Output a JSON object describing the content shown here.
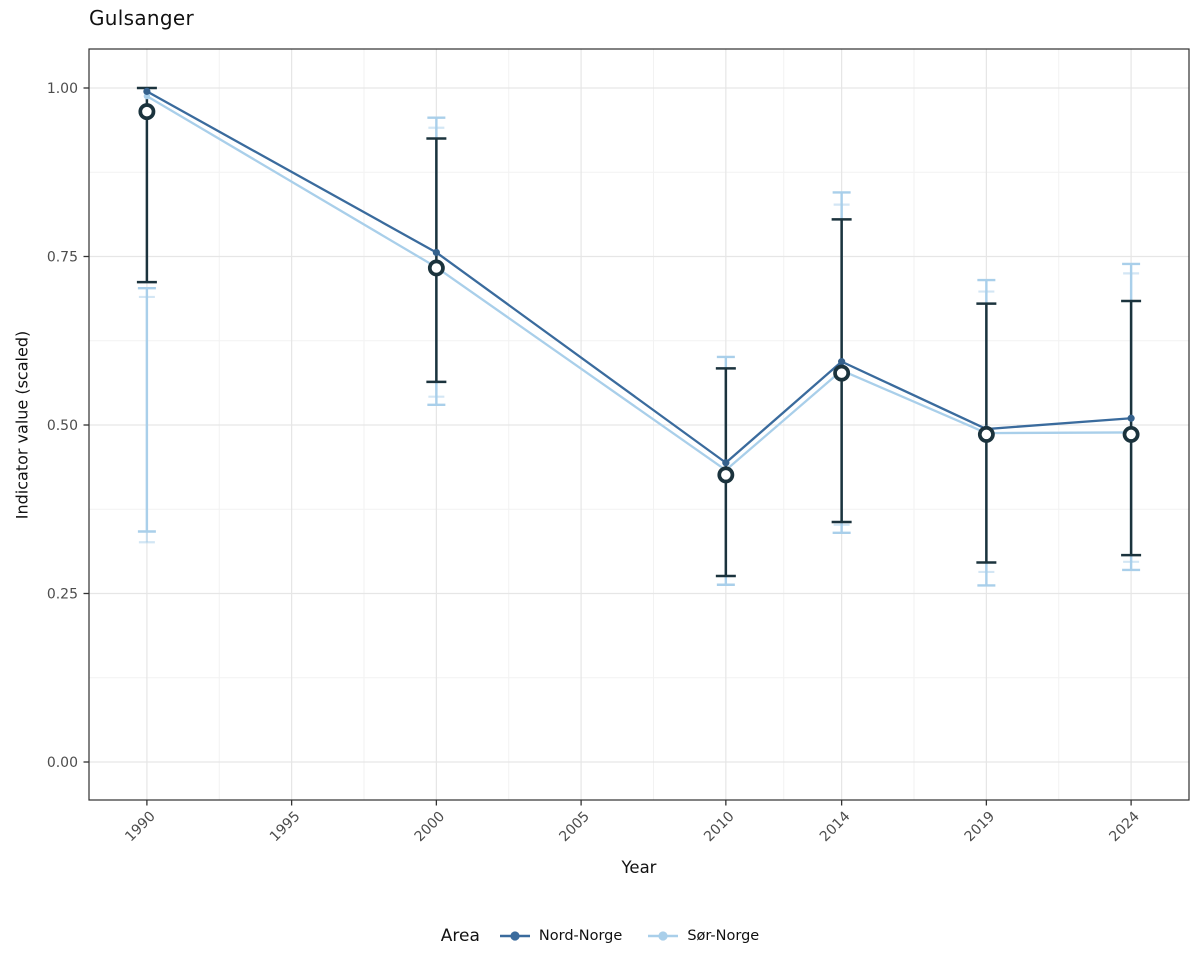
{
  "legend": {
    "title": "Area",
    "items": [
      {
        "label": "Nord-Norge",
        "color": "#3A6B9D"
      },
      {
        "label": "Sør-Norge",
        "color": "#A9CFEA"
      }
    ]
  },
  "chart_data": {
    "type": "line",
    "title": "Gulsanger",
    "xlabel": "Year",
    "ylabel": "Indicator value (scaled)",
    "x": [
      1990,
      2000,
      2010,
      2014,
      2019,
      2024
    ],
    "series": [
      {
        "name": "Nord-Norge",
        "color": "#3A6B9D",
        "point_color": "#35618C",
        "values": [
          0.995,
          0.756,
          0.444,
          0.594,
          0.494,
          0.51
        ],
        "ci_low": [
          0.326,
          0.542,
          null,
          0.352,
          0.282,
          0.297
        ],
        "ci_high": [
          0.69,
          0.941,
          null,
          0.827,
          0.698,
          0.725
        ]
      },
      {
        "name": "Sør-Norge",
        "color": "#A9CFEA",
        "point_color": "#A9CFEA",
        "values": [
          0.988,
          0.734,
          0.433,
          0.581,
          0.488,
          0.489
        ],
        "ci_low": [
          0.342,
          0.53,
          0.263,
          0.34,
          0.262,
          0.285
        ],
        "ci_high": [
          0.703,
          0.956,
          0.601,
          0.845,
          0.715,
          0.739
        ]
      }
    ],
    "overall": {
      "note": "open circle = median marker with dark interval bar",
      "color": "#1B333D",
      "median": [
        0.965,
        0.733,
        0.426,
        0.577,
        0.486,
        0.486
      ],
      "ci_low": [
        0.712,
        0.564,
        0.276,
        0.356,
        0.296,
        0.307
      ],
      "ci_high": [
        1.0,
        0.925,
        0.584,
        0.805,
        0.68,
        0.684
      ]
    },
    "x_ticks": [
      {
        "value": 1990,
        "label": "1990"
      },
      {
        "value": 1995,
        "label": "1995"
      },
      {
        "value": 2000,
        "label": "2000"
      },
      {
        "value": 2005,
        "label": "2005"
      },
      {
        "value": 2010,
        "label": "2010"
      },
      {
        "value": 2014,
        "label": "2014"
      },
      {
        "value": 2019,
        "label": "2019"
      },
      {
        "value": 2024,
        "label": "2024"
      }
    ],
    "y_ticks": [
      {
        "value": 0.0,
        "label": "0.00"
      },
      {
        "value": 0.25,
        "label": "0.25"
      },
      {
        "value": 0.5,
        "label": "0.50"
      },
      {
        "value": 0.75,
        "label": "0.75"
      },
      {
        "value": 1.0,
        "label": "1.00"
      }
    ],
    "xlim": [
      1988,
      2026
    ],
    "ylim": [
      0,
      1
    ],
    "grid": true,
    "legend_position": "bottom",
    "colors": {
      "grid_major": "#E6E6E6",
      "grid_minor": "#F2F2F2",
      "panel_border": "#2F2F2F",
      "tick_text": "#4D4D4D",
      "dark_interval": "#1B333D"
    }
  }
}
